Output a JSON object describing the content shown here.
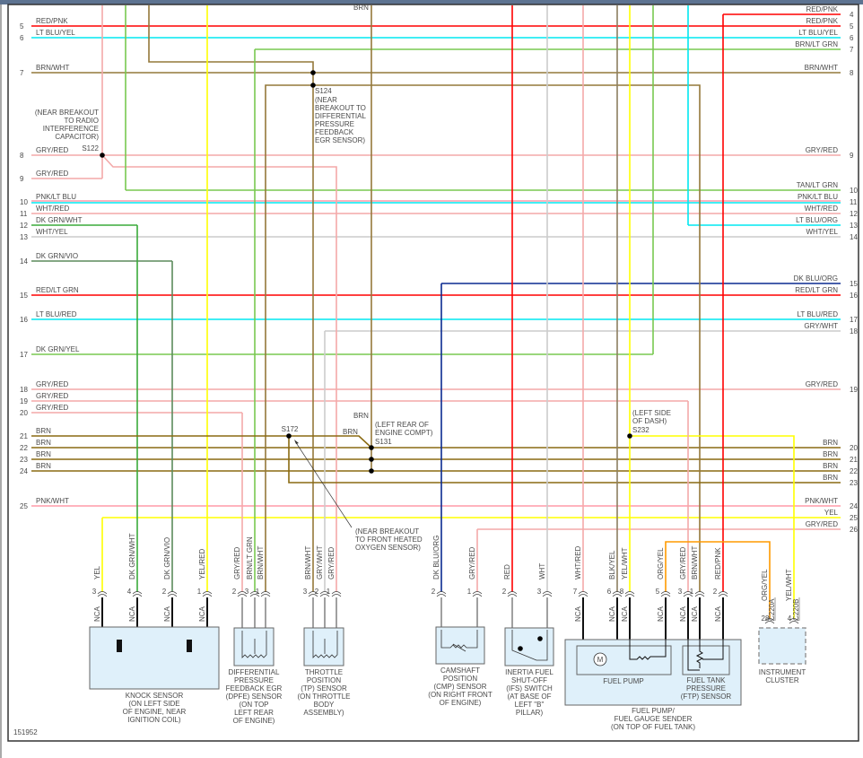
{
  "diagram_id": "151952",
  "colors": {
    "RED": "#ff0000",
    "CYAN": "#00e8f0",
    "BRN": "#8a6a12",
    "BRN_WHT": "#94783a",
    "GRY_RED": "#f3a9a9",
    "PINK": "#ff9aa8",
    "GREEN": "#3aaa3a",
    "LT_GRN": "#78c850",
    "YEL": "#ffff00",
    "GRY": "#cccccc",
    "DK_BLU": "#0a2a90",
    "ORG": "#ff9a00",
    "DK_GRN_VIO": "#5c8a5c",
    "BLK_YEL": "#8c7e60",
    "box_fill": "#dff0fa"
  },
  "left_rows": [
    {
      "num": "5",
      "label": "RED/PNK"
    },
    {
      "num": "6",
      "label": "LT BLU/YEL"
    },
    {
      "num": "7",
      "label": "BRN/WHT"
    },
    {
      "num": "8",
      "label": "GRY/RED"
    },
    {
      "num": "9",
      "label": "GRY/RED"
    },
    {
      "num": "10",
      "label": "PNK/LT BLU"
    },
    {
      "num": "11",
      "label": "WHT/RED"
    },
    {
      "num": "12",
      "label": "DK GRN/WHT"
    },
    {
      "num": "13",
      "label": "WHT/YEL"
    },
    {
      "num": "14",
      "label": "DK GRN/VIO"
    },
    {
      "num": "15",
      "label": "RED/LT GRN"
    },
    {
      "num": "16",
      "label": "LT BLU/RED"
    },
    {
      "num": "17",
      "label": "DK GRN/YEL"
    },
    {
      "num": "18",
      "label": "GRY/RED"
    },
    {
      "num": "19",
      "label": "GRY/RED"
    },
    {
      "num": "20",
      "label": "GRY/RED"
    },
    {
      "num": "21",
      "label": "BRN"
    },
    {
      "num": "22",
      "label": "BRN"
    },
    {
      "num": "23",
      "label": "BRN"
    },
    {
      "num": "24",
      "label": "BRN"
    },
    {
      "num": "25",
      "label": "PNK/WHT"
    }
  ],
  "right_rows": [
    {
      "num": "4",
      "label": "RED/PNK"
    },
    {
      "num": "5",
      "label": "RED/PNK"
    },
    {
      "num": "6",
      "label": "LT BLU/YEL"
    },
    {
      "num": "7",
      "label": "BRN/LT GRN"
    },
    {
      "num": "8",
      "label": "BRN/WHT"
    },
    {
      "num": "9",
      "label": "GRY/RED"
    },
    {
      "num": "10",
      "label": "TAN/LT GRN"
    },
    {
      "num": "11",
      "label": "PNK/LT BLU"
    },
    {
      "num": "12",
      "label": "WHT/RED"
    },
    {
      "num": "13",
      "label": "LT BLU/ORG"
    },
    {
      "num": "14",
      "label": "WHT/YEL"
    },
    {
      "num": "15",
      "label": "DK BLU/ORG"
    },
    {
      "num": "16",
      "label": "RED/LT GRN"
    },
    {
      "num": "17",
      "label": "LT BLU/RED"
    },
    {
      "num": "18",
      "label": "GRY/WHT"
    },
    {
      "num": "19",
      "label": "GRY/RED"
    },
    {
      "num": "20",
      "label": "BRN"
    },
    {
      "num": "21",
      "label": "BRN"
    },
    {
      "num": "22",
      "label": "BRN"
    },
    {
      "num": "23",
      "label": "BRN"
    },
    {
      "num": "24",
      "label": "PNK/WHT"
    },
    {
      "num": "25",
      "label": "YEL"
    },
    {
      "num": "26",
      "label": "GRY/RED"
    }
  ],
  "top_labels": {
    "brn_top": "BRN",
    "brn_s131": "BRN",
    "brn_s172": "BRN"
  },
  "splices": {
    "s122": {
      "id": "S122",
      "note": [
        "(NEAR BREAKOUT",
        "TO RADIO",
        "INTERFERENCE",
        "CAPACITOR)"
      ]
    },
    "s124": {
      "id": "S124",
      "note": [
        "(NEAR",
        "BREAKOUT TO",
        "DIFFERENTIAL",
        "PRESSURE",
        "FEEDBACK",
        "EGR SENSOR)"
      ]
    },
    "s131": {
      "id": "S131",
      "note": [
        "(LEFT REAR OF",
        "ENGINE COMPT)"
      ]
    },
    "s172": {
      "id": "S172",
      "note": [
        "(NEAR BREAKOUT",
        "TO FRONT HEATED",
        "OXYGEN SENSOR)"
      ]
    },
    "s232": {
      "id": "S232",
      "note": [
        "(LEFT SIDE",
        "OF DASH)"
      ]
    }
  },
  "nca": "NCA",
  "components": {
    "knock": {
      "name": [
        "KNOCK SENSOR",
        "(ON LEFT SIDE",
        "OF ENGINE, NEAR",
        "IGNITION COIL)"
      ],
      "pins": [
        {
          "num": "3",
          "wire": "YEL"
        },
        {
          "num": "4",
          "wire": "DK GRN/WHT"
        },
        {
          "num": "2",
          "wire": "DK GRN/VIO"
        },
        {
          "num": "1",
          "wire": "YEL/RED"
        }
      ]
    },
    "dpfe": {
      "name": [
        "DIFFERENTIAL",
        "PRESSURE",
        "FEEDBACK EGR",
        "(DPFE) SENSOR",
        "(ON TOP",
        "LEFT REAR",
        "OF ENGINE)"
      ],
      "pins": [
        {
          "num": "2",
          "wire": "GRY/RED"
        },
        {
          "num": "3",
          "wire": "BRN/LT GRN"
        },
        {
          "num": "1",
          "wire": "BRN/WHT"
        }
      ]
    },
    "tp": {
      "name": [
        "THROTTLE",
        "POSITION",
        "(TP) SENSOR",
        "(ON THROTTLE",
        "BODY",
        "ASSEMBLY)"
      ],
      "pins": [
        {
          "num": "3",
          "wire": "BRN/WHT"
        },
        {
          "num": "2",
          "wire": "GRY/WHT"
        },
        {
          "num": "1",
          "wire": "GRY/RED"
        }
      ]
    },
    "cmp": {
      "name": [
        "CAMSHAFT",
        "POSITION",
        "(CMP) SENSOR",
        "(ON RIGHT FRONT",
        "OF ENGINE)"
      ],
      "pins": [
        {
          "num": "2",
          "wire": "DK BLU/ORG"
        },
        {
          "num": "1",
          "wire": "GRY/RED"
        }
      ]
    },
    "ifs": {
      "name": [
        "INERTIA FUEL",
        "SHUT-OFF",
        "(IFS) SWITCH",
        "(AT BASE OF",
        "LEFT \"B\"",
        "PILLAR)"
      ],
      "pins": [
        {
          "num": "2",
          "wire": "RED"
        },
        {
          "num": "3",
          "wire": "WHT"
        }
      ]
    },
    "fuel": {
      "name": [
        "FUEL PUMP/",
        "FUEL GAUGE SENDER",
        "(ON TOP OF FUEL TANK)"
      ],
      "pump_label": "FUEL PUMP",
      "motor": "M",
      "ftp_label": [
        "FUEL TANK",
        "PRESSURE",
        "(FTP) SENSOR"
      ],
      "pins": [
        {
          "num": "7",
          "wire": "WHT/RED"
        },
        {
          "num": "6",
          "wire": "BLK/YEL"
        },
        {
          "num": "8",
          "wire": "YEL/WHT"
        },
        {
          "num": "5",
          "wire": "ORG/YEL"
        },
        {
          "num": "3",
          "wire": "GRY/RED"
        },
        {
          "num": "1",
          "wire": "BRN/WHT"
        },
        {
          "num": "2",
          "wire": "RED/PNK"
        }
      ]
    },
    "ic": {
      "name": [
        "INSTRUMENT",
        "CLUSTER"
      ],
      "pins": [
        {
          "num": "28",
          "wire": "ORG/YEL",
          "conn": "C220A"
        },
        {
          "num": "4",
          "wire": "YEL/WHT",
          "conn": "C220B"
        }
      ]
    }
  }
}
